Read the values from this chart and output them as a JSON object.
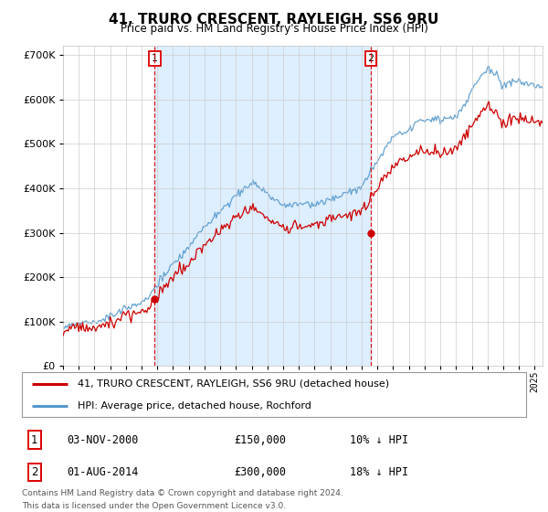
{
  "title": "41, TRURO CRESCENT, RAYLEIGH, SS6 9RU",
  "subtitle": "Price paid vs. HM Land Registry's House Price Index (HPI)",
  "legend_line1": "41, TRURO CRESCENT, RAYLEIGH, SS6 9RU (detached house)",
  "legend_line2": "HPI: Average price, detached house, Rochford",
  "annotation1_date": "03-NOV-2000",
  "annotation1_price": "£150,000",
  "annotation1_hpi": "10% ↓ HPI",
  "annotation2_date": "01-AUG-2014",
  "annotation2_price": "£300,000",
  "annotation2_hpi": "18% ↓ HPI",
  "footer1": "Contains HM Land Registry data © Crown copyright and database right 2024.",
  "footer2": "This data is licensed under the Open Government Licence v3.0.",
  "price_color": "#cc0000",
  "hpi_color": "#5599cc",
  "annotation_color": "#dd0000",
  "shade_color": "#ddeeff",
  "background_color": "#ffffff",
  "grid_color": "#cccccc",
  "ylim": [
    0,
    720000
  ],
  "yticks": [
    0,
    100000,
    200000,
    300000,
    400000,
    500000,
    600000,
    700000
  ],
  "xlim_start": 1995.0,
  "xlim_end": 2025.5,
  "t1": 2000.833,
  "t2": 2014.583,
  "p1": 150000,
  "p2": 300000
}
